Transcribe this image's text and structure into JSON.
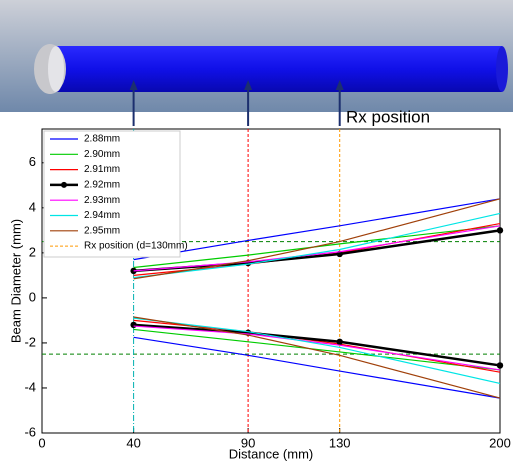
{
  "annotation": "Rx position",
  "chart_data": {
    "type": "line",
    "x_label": "Distance (mm)",
    "y_label": "Beam Diameter (mm)",
    "x": [
      40,
      90,
      130,
      200
    ],
    "xlim": [
      0,
      200
    ],
    "ylim": [
      -6,
      7.5
    ],
    "xticks": [
      0,
      40,
      90,
      130,
      200
    ],
    "yticks": [
      -6,
      -4,
      -2,
      0,
      2,
      4,
      6
    ],
    "series": [
      {
        "name": "2.88mm",
        "color": "#0000ff",
        "values": [
          1.7,
          2.55,
          3.2,
          4.4
        ],
        "lower": [
          -1.75,
          -2.55,
          -3.25,
          -4.45
        ]
      },
      {
        "name": "2.90mm",
        "color": "#00cc00",
        "values": [
          1.35,
          1.9,
          2.4,
          3.2
        ],
        "lower": [
          -1.4,
          -1.95,
          -2.4,
          -3.2
        ]
      },
      {
        "name": "2.91mm",
        "color": "#ff0000",
        "values": [
          1.0,
          1.5,
          2.0,
          3.3
        ],
        "lower": [
          -1.0,
          -1.5,
          -2.05,
          -3.3
        ]
      },
      {
        "name": "2.92mm",
        "color": "#000000",
        "values": [
          1.2,
          1.55,
          1.95,
          3.0
        ],
        "lower": [
          -1.2,
          -1.55,
          -1.95,
          -3.0
        ],
        "markers": true
      },
      {
        "name": "2.93mm",
        "color": "#ff00ff",
        "values": [
          1.2,
          1.6,
          2.05,
          3.2
        ],
        "lower": [
          -1.25,
          -1.6,
          -2.1,
          -3.2
        ]
      },
      {
        "name": "2.94mm",
        "color": "#00e5e5",
        "values": [
          0.9,
          1.5,
          2.15,
          3.75
        ],
        "lower": [
          -0.9,
          -1.5,
          -2.2,
          -3.8
        ]
      },
      {
        "name": "2.95mm",
        "color": "#a0400a",
        "values": [
          0.85,
          1.65,
          2.5,
          4.4
        ],
        "lower": [
          -0.85,
          -1.65,
          -2.55,
          -4.45
        ]
      }
    ],
    "horizontal_lines": [
      {
        "value": 2.5,
        "color": "#008000"
      },
      {
        "value": -2.5,
        "color": "#008000"
      }
    ],
    "vertical_lines": [
      {
        "value": 40,
        "color": "#00b0b0"
      },
      {
        "value": 90,
        "color": "#ff0000"
      },
      {
        "name": "Rx position (d=130mm)",
        "value": 130,
        "color": "#ff9900"
      }
    ]
  }
}
